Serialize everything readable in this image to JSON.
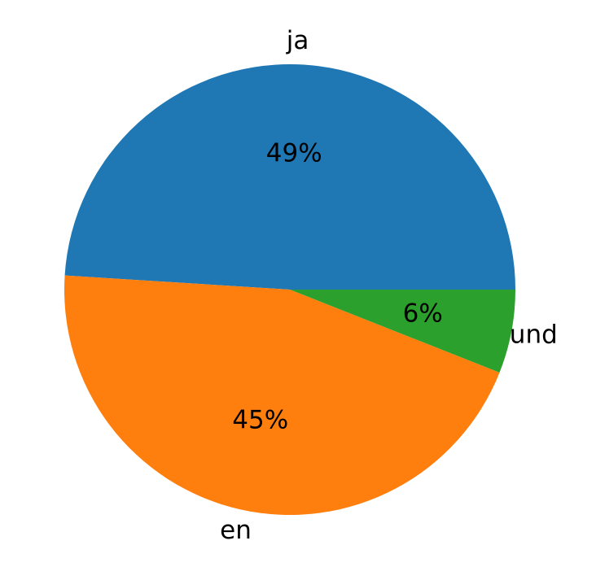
{
  "chart_data": {
    "type": "pie",
    "categories": [
      "ja",
      "en",
      "und"
    ],
    "values": [
      49,
      45,
      6
    ],
    "value_labels": [
      "49%",
      "45%",
      "6%"
    ],
    "colors": [
      "#1f77b4",
      "#ff7f0e",
      "#2ca02c"
    ],
    "startangle": 0
  }
}
